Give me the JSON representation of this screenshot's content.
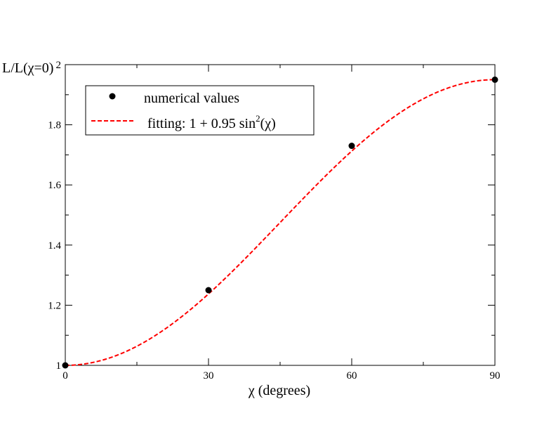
{
  "chart_data": {
    "type": "scatter",
    "title": "",
    "xlabel": "χ (degrees)",
    "ylabel": "L/L(χ=0)",
    "xlim": [
      0,
      90
    ],
    "ylim": [
      1,
      2
    ],
    "x_ticks": [
      0,
      30,
      60,
      90
    ],
    "x_tick_labels": [
      "0",
      "30",
      "60",
      "90"
    ],
    "y_ticks": [
      1,
      1.2,
      1.4,
      1.6,
      1.8,
      2
    ],
    "y_tick_labels": [
      "1",
      "1.2",
      "1.4",
      "1.6",
      "1.8",
      "2"
    ],
    "x_minor_step": 15,
    "y_minor_step": 0.1,
    "grid": false,
    "legend_position": "top-left",
    "series": [
      {
        "name": "numerical values",
        "kind": "points",
        "color": "#000000",
        "x": [
          0,
          30,
          60,
          90
        ],
        "y": [
          1.0,
          1.25,
          1.73,
          1.95
        ]
      },
      {
        "name": "fitting: 1 + 0.95 sin",
        "name_superscript": "2",
        "name_suffix": "(χ)",
        "kind": "dashed-line",
        "color": "#ff0000",
        "formula": {
          "base": 1,
          "amplitude": 0.95,
          "function": "sin^2(x in degrees)"
        }
      }
    ]
  }
}
